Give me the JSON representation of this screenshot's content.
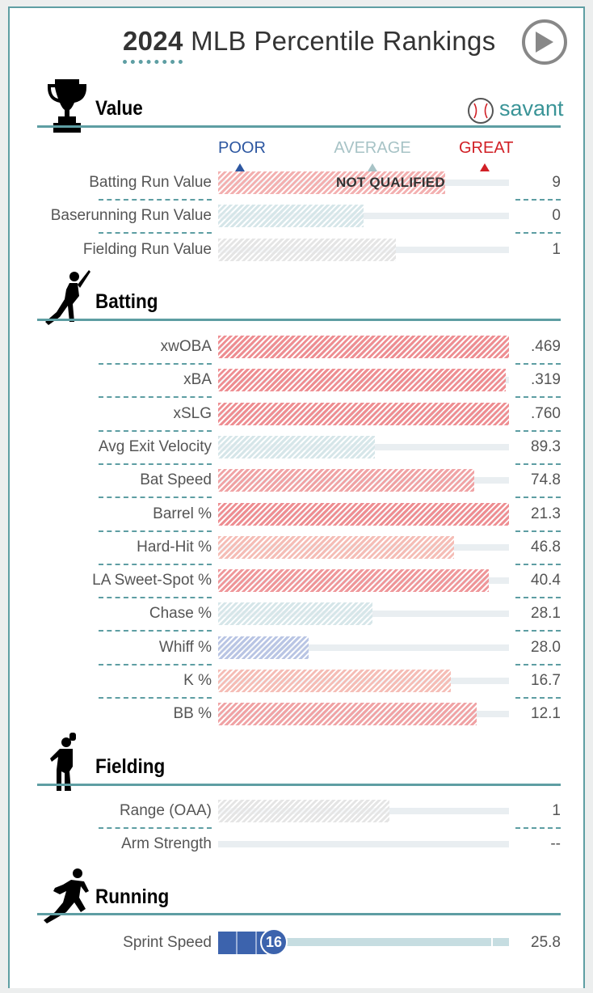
{
  "header": {
    "title_year": "2024",
    "title_rest": "MLB Percentile Rankings",
    "play_label": "play"
  },
  "brand": {
    "name": "savant"
  },
  "scale": {
    "poor": "POOR",
    "average": "AVERAGE",
    "great": "GREAT",
    "poor_color": "#2d57a1",
    "average_color": "#a7c3c6",
    "great_color": "#d12026"
  },
  "colors": {
    "accent": "#5e9ea3"
  },
  "sections": [
    {
      "key": "value",
      "title": "Value",
      "icon": "trophy-icon",
      "rows": [
        {
          "label": "Batting Run Value",
          "value": "9",
          "pct": 78,
          "color": "#f3b0b0",
          "note": "NOT QUALIFIED"
        },
        {
          "label": "Baserunning Run Value",
          "value": "0",
          "pct": 50,
          "color": "#d6e6e9"
        },
        {
          "label": "Fielding Run Value",
          "value": "1",
          "pct": 61,
          "color": "#e5e5e5"
        }
      ]
    },
    {
      "key": "batting",
      "title": "Batting",
      "icon": "batter-icon",
      "rows": [
        {
          "label": "xwOBA",
          "value": ".469",
          "pct": 100,
          "color": "#ee8e92"
        },
        {
          "label": "xBA",
          "value": ".319",
          "pct": 99,
          "color": "#ee8e92"
        },
        {
          "label": "xSLG",
          "value": ".760",
          "pct": 100,
          "color": "#ee8e92"
        },
        {
          "label": "Avg Exit Velocity",
          "value": "89.3",
          "pct": 54,
          "color": "#d6e6e9"
        },
        {
          "label": "Bat Speed",
          "value": "74.8",
          "pct": 88,
          "color": "#f0a3a5"
        },
        {
          "label": "Barrel %",
          "value": "21.3",
          "pct": 100,
          "color": "#ee8e92"
        },
        {
          "label": "Hard-Hit %",
          "value": "46.8",
          "pct": 81,
          "color": "#f5bdb6"
        },
        {
          "label": "LA Sweet-Spot %",
          "value": "40.4",
          "pct": 93,
          "color": "#ef979a"
        },
        {
          "label": "Chase %",
          "value": "28.1",
          "pct": 53,
          "color": "#d6e6e9"
        },
        {
          "label": "Whiff %",
          "value": "28.0",
          "pct": 31,
          "color": "#b9c5e4"
        },
        {
          "label": "K %",
          "value": "16.7",
          "pct": 80,
          "color": "#f5bdb6"
        },
        {
          "label": "BB %",
          "value": "12.1",
          "pct": 89,
          "color": "#f0a3a5"
        }
      ]
    },
    {
      "key": "fielding",
      "title": "Fielding",
      "icon": "fielder-icon",
      "rows": [
        {
          "label": "Range (OAA)",
          "value": "1",
          "pct": 59,
          "color": "#e5e5e5"
        },
        {
          "label": "Arm Strength",
          "value": "--",
          "pct": 0,
          "color": "#e5e5e5"
        }
      ]
    },
    {
      "key": "running",
      "title": "Running",
      "icon": "runner-icon",
      "rows": [
        {
          "label": "Sprint Speed",
          "value": "25.8",
          "pct": 16,
          "color": "#3c63ad",
          "bubble": "16"
        }
      ]
    }
  ]
}
